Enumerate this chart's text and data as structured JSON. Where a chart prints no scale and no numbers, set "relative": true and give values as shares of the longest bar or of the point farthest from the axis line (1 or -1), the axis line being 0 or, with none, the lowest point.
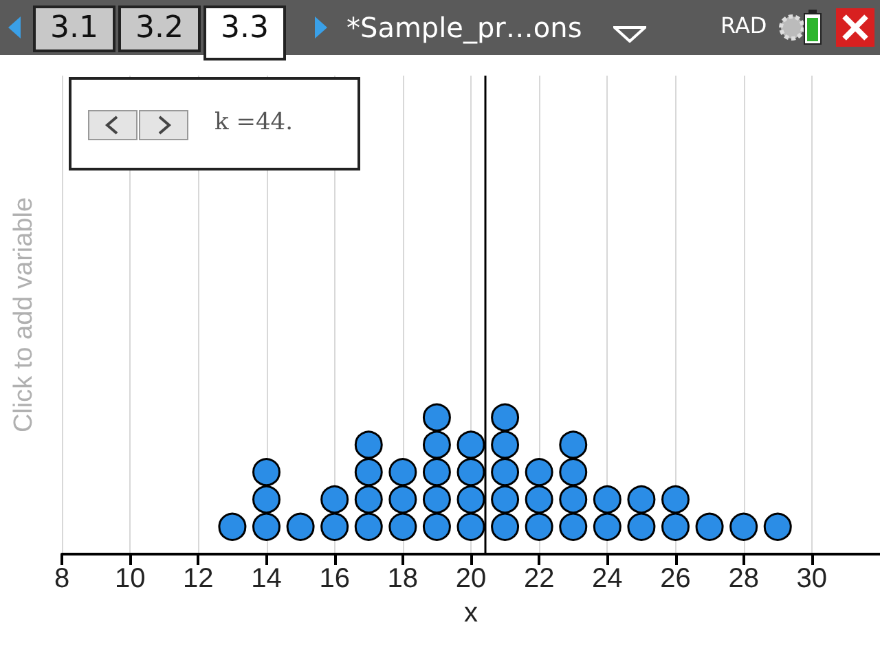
{
  "chart_data": {
    "type": "scatter",
    "xlabel": "x",
    "ylabel": "Click to add variable",
    "annotations": [
      "3.1",
      "3.2",
      "3.3",
      "*Sample_pr…ons",
      "RAD",
      "k =44."
    ],
    "x": [
      13,
      14,
      14,
      14,
      15,
      16,
      16,
      17,
      17,
      17,
      17,
      18,
      18,
      18,
      19,
      19,
      19,
      19,
      19,
      20,
      20,
      20,
      20,
      21,
      21,
      21,
      21,
      21,
      22,
      22,
      22,
      23,
      23,
      23,
      23,
      24,
      24,
      25,
      25,
      26,
      26,
      27,
      28,
      29
    ],
    "values": [
      0.2,
      0.2,
      0.4,
      0.6,
      0.2,
      0.2,
      0.4,
      0.2,
      0.4,
      0.6,
      0.8,
      0.2,
      0.4,
      0.6,
      0.2,
      0.4,
      0.6,
      0.8,
      1,
      0.2,
      0.4,
      0.6,
      0.8,
      0.2,
      0.4,
      0.6,
      0.8,
      1,
      0.2,
      0.4,
      0.6,
      0.2,
      0.4,
      0.6,
      0.8,
      0.2,
      0.4,
      0.2,
      0.4,
      0.2,
      0.4,
      0.2,
      0.2,
      0.2
    ],
    "relative": true,
    "color": "#2b8de6",
    "marker": "circle",
    "xlim": [
      8,
      32
    ],
    "xticks": [
      8,
      10,
      12,
      14,
      16,
      18,
      20,
      22,
      24,
      26,
      28,
      30
    ],
    "tick_labels": "x",
    "grid": "x",
    "ref_lines": [
      {
        "axis": "x",
        "value": 20.4,
        "color": "#000000"
      }
    ]
  }
}
